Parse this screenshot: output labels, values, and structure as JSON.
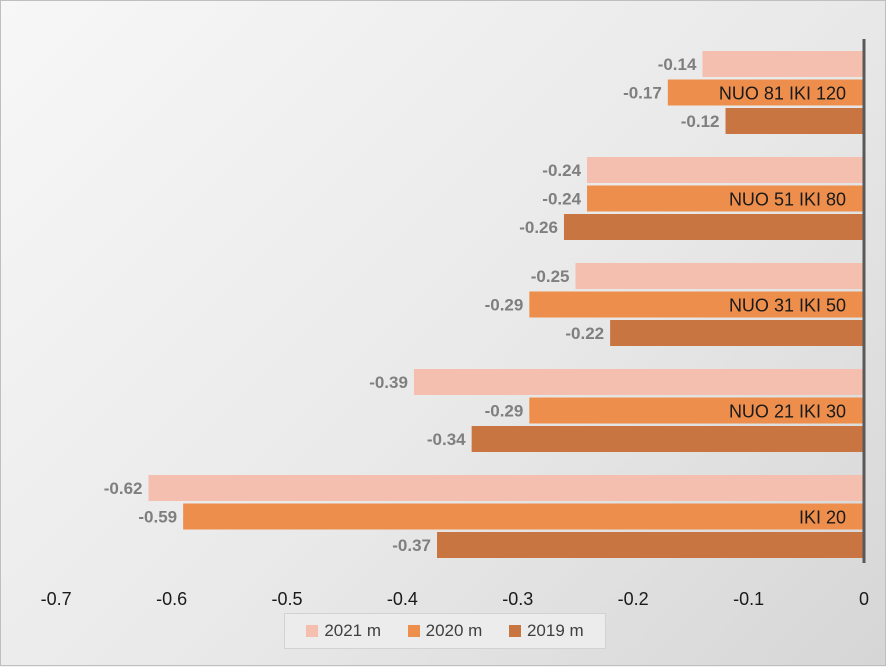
{
  "chart_data": {
    "type": "bar",
    "orientation": "horizontal",
    "categories": [
      "NUO 81 IKI 120",
      "NUO 51 IKI 80",
      "NUO 31 IKI 50",
      "NUO 21 IKI 30",
      "IKI 20"
    ],
    "series": [
      {
        "name": "2021 m",
        "color": "#f4bfae",
        "values": [
          -0.14,
          -0.24,
          -0.25,
          -0.39,
          -0.62
        ]
      },
      {
        "name": "2020 m",
        "color": "#ed8e4c",
        "values": [
          -0.17,
          -0.24,
          -0.29,
          -0.29,
          -0.59
        ]
      },
      {
        "name": "2019 m",
        "color": "#c87541",
        "values": [
          -0.12,
          -0.26,
          -0.22,
          -0.34,
          -0.37
        ]
      }
    ],
    "data_labels": [
      [
        "-0.14",
        "-0.24",
        "-0.25",
        "-0.39",
        "-0.62"
      ],
      [
        "-0.17",
        "-0.24",
        "-0.29",
        "-0.29",
        "-0.59"
      ],
      [
        "-0.12",
        "-0.26",
        "-0.22",
        "-0.34",
        "-0.37"
      ]
    ],
    "xlim": [
      -0.7,
      0
    ],
    "xticks": [
      -0.7,
      -0.6,
      -0.5,
      -0.4,
      -0.3,
      -0.2,
      -0.1,
      0
    ],
    "xtick_labels": [
      "-0.7",
      "-0.6",
      "-0.5",
      "-0.4",
      "-0.3",
      "-0.2",
      "-0.1",
      "0"
    ],
    "title": "",
    "xlabel": "",
    "ylabel": "",
    "grid": false,
    "legend_position": "bottom"
  }
}
